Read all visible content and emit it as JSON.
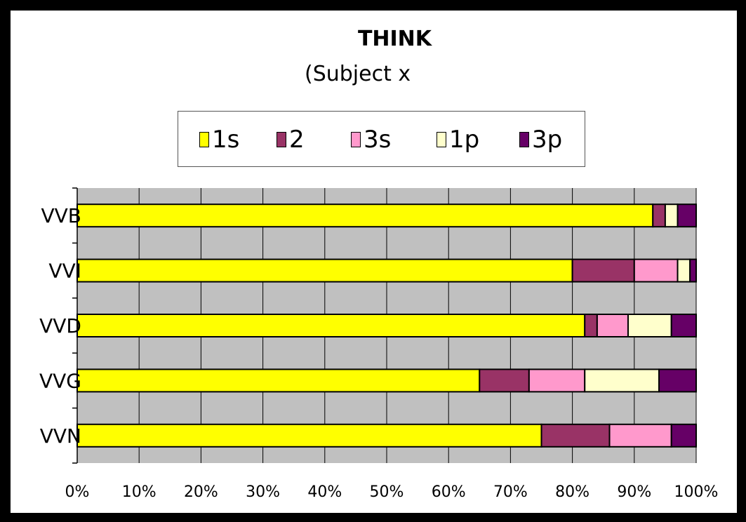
{
  "chart_data": {
    "type": "bar",
    "orientation": "horizontal",
    "stacked": "percent",
    "title": "THINK",
    "subtitle": "(Subject x",
    "categories": [
      "VVB",
      "VVI",
      "VVD",
      "VVG",
      "VVN"
    ],
    "series": [
      {
        "name": "1s",
        "color": "#ffff00",
        "values": [
          93,
          80,
          82,
          65,
          75
        ]
      },
      {
        "name": "2",
        "color": "#993366",
        "values": [
          2,
          10,
          2,
          8,
          11
        ]
      },
      {
        "name": "3s",
        "color": "#ff99cc",
        "values": [
          0,
          7,
          5,
          9,
          10
        ]
      },
      {
        "name": "1p",
        "color": "#ffffcc",
        "values": [
          2,
          2,
          7,
          12,
          0
        ]
      },
      {
        "name": "3p",
        "color": "#660066",
        "values": [
          3,
          1,
          4,
          6,
          4
        ]
      }
    ],
    "x_ticks": [
      "0%",
      "10%",
      "20%",
      "30%",
      "40%",
      "50%",
      "60%",
      "70%",
      "80%",
      "90%",
      "100%"
    ],
    "xlim": [
      0,
      100
    ],
    "xlabel": "",
    "ylabel": "",
    "grid": true,
    "plot_background": "#c0c0c0",
    "legend_position": "top"
  }
}
